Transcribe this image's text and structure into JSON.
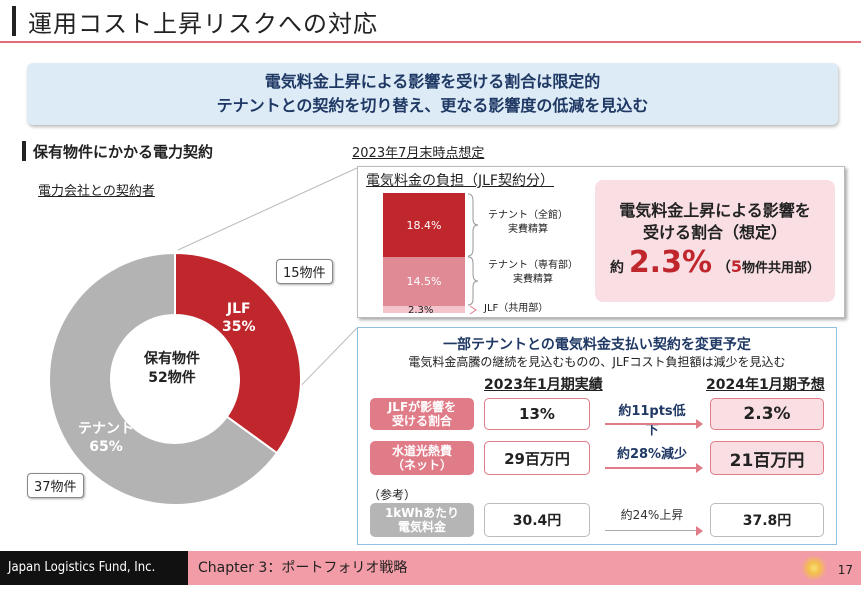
{
  "title": "運用コスト上昇リスクへの対応",
  "banner": {
    "line1": "電気料金上昇による影響を受ける割合は限定的",
    "line2": "テナントとの契約を切り替え、更なる影響度の低減を見込む"
  },
  "section": {
    "title": "保有物件にかかる電力契約",
    "contract_label": "電力会社との契約者"
  },
  "donut": {
    "center_line1": "保有物件",
    "center_line2": "52物件",
    "segments": [
      {
        "label": "JLF",
        "pct_label": "35%",
        "value": 35,
        "count": "15物件",
        "color": "#c0272d"
      },
      {
        "label": "テナント",
        "pct_label": "65%",
        "value": 65,
        "count": "37物件",
        "color": "#b3b3b3"
      }
    ]
  },
  "burden": {
    "as_of": "2023年7月末時点想定",
    "title": "電気料金の負担（JLF契約分）",
    "bars": [
      {
        "value": 18.4,
        "label": "18.4%",
        "desc1": "テナント（全館）",
        "desc2": "実費精算",
        "color": "#c0272d"
      },
      {
        "value": 14.5,
        "label": "14.5%",
        "desc1": "テナント（専有部）",
        "desc2": "実費精算",
        "color": "#e08a96"
      },
      {
        "value": 2.3,
        "label": "2.3%",
        "desc1": "JLF（共用部）",
        "desc2": "",
        "color": "#f3c4cb"
      }
    ]
  },
  "callout": {
    "line1": "電気料金上昇による影響を",
    "line2": "受ける割合（想定）",
    "prefix": "約",
    "value": "2.3%",
    "suffix_num": "5",
    "suffix": "物件共用部）",
    "suffix_open": "（"
  },
  "change": {
    "title": "一部テナントとの電気料金支払い契約を変更予定",
    "subtitle": "電気料金高騰の継続を見込むものの、JLFコスト負担額は減少を見込む",
    "col1": "2023年1月期実績",
    "col2": "2024年1月期予想",
    "rows": [
      {
        "h1": "JLFが影響を",
        "h2": "受ける割合",
        "v1": "13%",
        "change": "約11pts低下",
        "v2": "2.3%"
      },
      {
        "h1": "水道光熱費",
        "h2": "（ネット）",
        "v1": "29百万円",
        "change": "約28%減少",
        "v2": "21百万円"
      }
    ],
    "ref_label": "（参考）",
    "ref": {
      "h1": "1kWhあたり",
      "h2": "電気料金",
      "v1": "30.4円",
      "change": "約24%上昇",
      "v2": "37.8円"
    }
  },
  "footer": {
    "company": "Japan Logistics Fund, Inc.",
    "chapter": "Chapter 3：ポートフォリオ戦略",
    "page": "17"
  }
}
